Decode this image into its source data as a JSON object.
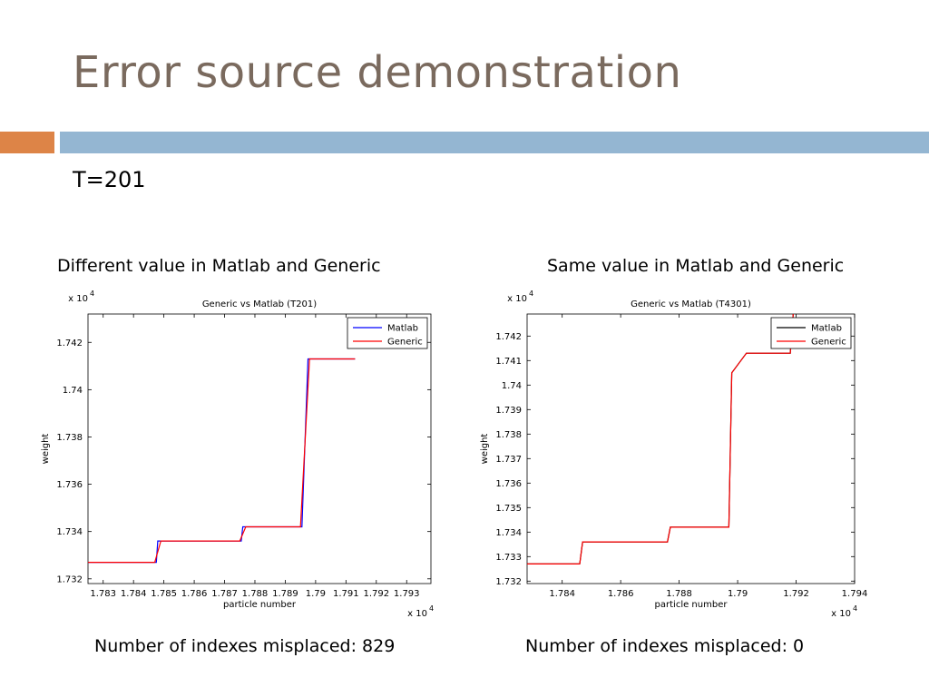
{
  "slide": {
    "title": "Error source demonstration",
    "subtitle": "T=201",
    "left_caption": "Different value in Matlab and Generic",
    "right_caption": "Same value in Matlab and Generic",
    "left_footer": "Number of indexes misplaced: 829",
    "right_footer": "Number of indexes misplaced: 0"
  },
  "colors": {
    "accent_orange": "#dd8447",
    "accent_blue": "#94b6d2",
    "title": "#7a6a5e",
    "matlab": "#0000ff",
    "generic": "#ff0000"
  },
  "chart_data": [
    {
      "type": "line",
      "title": "Generic vs Matlab (T201)",
      "xlabel": "particle number",
      "ylabel": "weight",
      "x_multiplier": "x 10",
      "y_multiplier": "x 10",
      "exponent": "4",
      "xlim": [
        1.7825,
        1.7938
      ],
      "ylim": [
        1.7318,
        1.7432
      ],
      "xticks": [
        "1.783",
        "1.784",
        "1.785",
        "1.786",
        "1.787",
        "1.788",
        "1.789",
        "1.79",
        "1.791",
        "1.792",
        "1.793"
      ],
      "xtick_values": [
        1.783,
        1.784,
        1.785,
        1.786,
        1.787,
        1.788,
        1.789,
        1.79,
        1.791,
        1.792,
        1.793
      ],
      "yticks": [
        "1.732",
        "1.734",
        "1.736",
        "1.738",
        "1.74",
        "1.742"
      ],
      "ytick_values": [
        1.732,
        1.734,
        1.736,
        1.738,
        1.74,
        1.742
      ],
      "legend_position": "top-right",
      "series": [
        {
          "name": "Matlab",
          "color": "#0000ff",
          "x": [
            1.7825,
            1.78475,
            1.7848,
            1.78755,
            1.7876,
            1.78955,
            1.78975,
            1.7913
          ],
          "y": [
            1.7327,
            1.7327,
            1.7336,
            1.7336,
            1.7342,
            1.7342,
            1.7413,
            1.7413
          ]
        },
        {
          "name": "Generic",
          "color": "#ff0000",
          "x": [
            1.7825,
            1.7847,
            1.7849,
            1.7875,
            1.7877,
            1.7895,
            1.7898,
            1.7913
          ],
          "y": [
            1.7327,
            1.7327,
            1.7336,
            1.7336,
            1.7342,
            1.7342,
            1.7413,
            1.7413
          ]
        }
      ]
    },
    {
      "type": "line",
      "title": "Generic vs Matlab (T4301)",
      "xlabel": "particle number",
      "ylabel": "weight",
      "x_multiplier": "x 10",
      "y_multiplier": "x 10",
      "exponent": "4",
      "xlim": [
        1.7828,
        1.794
      ],
      "ylim": [
        1.7319,
        1.7429
      ],
      "xticks": [
        "1.784",
        "1.786",
        "1.788",
        "1.79",
        "1.792",
        "1.794"
      ],
      "xtick_values": [
        1.784,
        1.786,
        1.788,
        1.79,
        1.792,
        1.794
      ],
      "yticks": [
        "1.732",
        "1.733",
        "1.734",
        "1.735",
        "1.736",
        "1.737",
        "1.738",
        "1.739",
        "1.74",
        "1.741",
        "1.742"
      ],
      "ytick_values": [
        1.732,
        1.733,
        1.734,
        1.735,
        1.736,
        1.737,
        1.738,
        1.739,
        1.74,
        1.741,
        1.742
      ],
      "legend_position": "top-right",
      "series": [
        {
          "name": "Matlab",
          "color": "#000000",
          "x": [
            1.7828,
            1.7846,
            1.7847,
            1.7876,
            1.7877,
            1.7897,
            1.7898,
            1.7903,
            1.7918,
            1.7919
          ],
          "y": [
            1.7327,
            1.7327,
            1.7336,
            1.7336,
            1.7342,
            1.7342,
            1.7405,
            1.7413,
            1.7413,
            1.7429
          ]
        },
        {
          "name": "Generic",
          "color": "#ff0000",
          "x": [
            1.7828,
            1.7846,
            1.7847,
            1.7876,
            1.7877,
            1.7897,
            1.7898,
            1.7903,
            1.7918,
            1.7919
          ],
          "y": [
            1.7327,
            1.7327,
            1.7336,
            1.7336,
            1.7342,
            1.7342,
            1.7405,
            1.7413,
            1.7413,
            1.7429
          ]
        }
      ]
    }
  ]
}
